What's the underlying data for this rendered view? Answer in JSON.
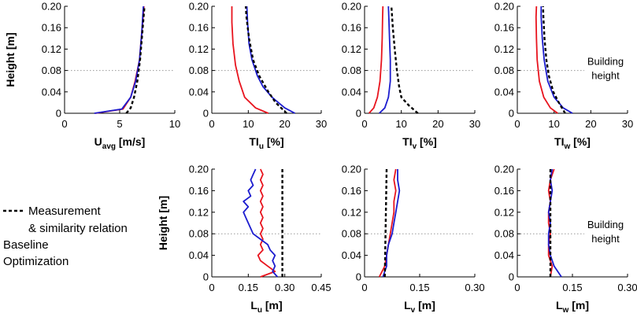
{
  "figure": {
    "building_annotation": [
      "Building",
      "height"
    ],
    "building_height": 0.08
  },
  "colors": {
    "measurement": "#000000",
    "baseline": "#e8141e",
    "optimization": "#1c1ccf",
    "building_line": "#999999"
  },
  "legend": {
    "items": [
      {
        "key": "measurement",
        "label": [
          "Measurement",
          "& similarity relation"
        ],
        "style": "dashed"
      },
      {
        "key": "baseline",
        "label": [
          "Baseline"
        ],
        "style": "solid"
      },
      {
        "key": "optimization",
        "label": [
          "Optimization"
        ],
        "style": "solid"
      }
    ]
  },
  "chart_data": [
    {
      "id": "u-avg",
      "type": "line",
      "ylabel": "Height [m]",
      "xlabel": {
        "main": "U",
        "sub": "avg",
        "unit": " [m/s]"
      },
      "xlim": [
        0,
        10
      ],
      "xticks": [
        0,
        5,
        10
      ],
      "ylim": [
        0,
        0.2
      ],
      "yticks": [
        0,
        0.04,
        0.08,
        0.12,
        0.16,
        0.2
      ],
      "series": [
        {
          "name": "Measurement & similarity relation",
          "dashed": true,
          "x": [
            5.6,
            6.0,
            6.3,
            6.6,
            6.85,
            7.05,
            7.25
          ],
          "y": [
            0.0,
            0.01,
            0.03,
            0.06,
            0.1,
            0.15,
            0.2
          ]
        },
        {
          "name": "Baseline",
          "x": [
            2.8,
            5.3,
            6.0,
            6.4,
            6.8,
            7.0,
            7.2
          ],
          "y": [
            0.0,
            0.008,
            0.03,
            0.06,
            0.1,
            0.15,
            0.2
          ]
        },
        {
          "name": "Optimization",
          "x": [
            2.7,
            5.2,
            6.0,
            6.45,
            6.8,
            7.0,
            7.15
          ],
          "y": [
            0.0,
            0.008,
            0.03,
            0.06,
            0.1,
            0.15,
            0.2
          ]
        }
      ]
    },
    {
      "id": "ti-u",
      "type": "line",
      "xlabel": {
        "main": "TI",
        "sub": "u",
        "unit": " [%]"
      },
      "xlim": [
        0,
        30
      ],
      "xticks": [
        0,
        10,
        20,
        30
      ],
      "ylim": [
        0,
        0.2
      ],
      "yticks": [
        0,
        0.04,
        0.08,
        0.12,
        0.16,
        0.2
      ],
      "series": [
        {
          "name": "Measurement & similarity relation",
          "dashed": true,
          "x": [
            20.5,
            17.5,
            15.5,
            13.0,
            11.3,
            10.2,
            9.5,
            9.3
          ],
          "y": [
            0.0,
            0.02,
            0.04,
            0.07,
            0.1,
            0.14,
            0.18,
            0.2
          ]
        },
        {
          "name": "Baseline",
          "x": [
            15.5,
            12.0,
            9.0,
            7.5,
            6.5,
            5.8,
            5.5,
            5.5
          ],
          "y": [
            0.0,
            0.01,
            0.03,
            0.06,
            0.09,
            0.13,
            0.17,
            0.2
          ]
        },
        {
          "name": "Optimization",
          "x": [
            22.8,
            20.0,
            16.5,
            14.0,
            12.5,
            11.0,
            10.2,
            9.8,
            9.6
          ],
          "y": [
            0.0,
            0.01,
            0.03,
            0.05,
            0.07,
            0.1,
            0.13,
            0.17,
            0.2
          ]
        }
      ]
    },
    {
      "id": "ti-v",
      "type": "line",
      "xlabel": {
        "main": "TI",
        "sub": "v",
        "unit": " [%]"
      },
      "xlim": [
        0,
        30
      ],
      "xticks": [
        0,
        10,
        20,
        30
      ],
      "ylim": [
        0,
        0.2
      ],
      "yticks": [
        0,
        0.04,
        0.08,
        0.12,
        0.16,
        0.2
      ],
      "series": [
        {
          "name": "Measurement & similarity relation",
          "dashed": true,
          "x": [
            14.5,
            12.0,
            10.0,
            9.4,
            8.8,
            8.2,
            7.7,
            7.3
          ],
          "y": [
            0.0,
            0.015,
            0.03,
            0.05,
            0.08,
            0.12,
            0.16,
            0.2
          ]
        },
        {
          "name": "Baseline",
          "x": [
            1.2,
            2.5,
            3.5,
            4.2,
            4.6,
            4.8,
            4.9,
            5.0
          ],
          "y": [
            0.0,
            0.01,
            0.03,
            0.06,
            0.1,
            0.14,
            0.18,
            0.2
          ]
        },
        {
          "name": "Optimization",
          "x": [
            4.0,
            5.5,
            6.5,
            7.0,
            7.0,
            6.8,
            6.6,
            6.5
          ],
          "y": [
            0.0,
            0.01,
            0.03,
            0.06,
            0.1,
            0.14,
            0.18,
            0.2
          ]
        }
      ]
    },
    {
      "id": "ti-w",
      "type": "line",
      "xlabel": {
        "main": "TI",
        "sub": "w",
        "unit": " [%]"
      },
      "xlim": [
        0,
        30
      ],
      "xticks": [
        0,
        10,
        20,
        30
      ],
      "ylim": [
        0,
        0.2
      ],
      "yticks": [
        0,
        0.04,
        0.08,
        0.12,
        0.16,
        0.2
      ],
      "series": [
        {
          "name": "Measurement & similarity relation",
          "dashed": true,
          "x": [
            13.0,
            11.3,
            9.8,
            8.6,
            7.9,
            7.4,
            7.1,
            7.0
          ],
          "y": [
            0.0,
            0.02,
            0.04,
            0.07,
            0.1,
            0.14,
            0.18,
            0.2
          ]
        },
        {
          "name": "Baseline",
          "x": [
            11.0,
            9.0,
            7.2,
            6.0,
            5.4,
            5.2,
            5.1,
            5.2
          ],
          "y": [
            0.0,
            0.01,
            0.03,
            0.06,
            0.1,
            0.14,
            0.18,
            0.2
          ]
        },
        {
          "name": "Optimization",
          "x": [
            15.0,
            12.5,
            10.0,
            8.3,
            7.3,
            6.8,
            6.5,
            6.5
          ],
          "y": [
            0.0,
            0.01,
            0.03,
            0.06,
            0.1,
            0.14,
            0.18,
            0.2
          ]
        }
      ]
    },
    {
      "id": "l-u",
      "type": "line",
      "ylabel": "Height [m]",
      "xlabel": {
        "main": "L",
        "sub": "u",
        "unit": " [m]"
      },
      "xlim": [
        0,
        0.45
      ],
      "xticks": [
        0,
        0.15,
        0.3,
        0.45
      ],
      "ylim": [
        0,
        0.2
      ],
      "yticks": [
        0,
        0.04,
        0.08,
        0.12,
        0.16,
        0.2
      ],
      "series": [
        {
          "name": "Measurement & similarity relation",
          "dashed": true,
          "x": [
            0.29,
            0.29
          ],
          "y": [
            0.0,
            0.2
          ]
        },
        {
          "name": "Baseline",
          "x": [
            0.2,
            0.26,
            0.23,
            0.2,
            0.19,
            0.21,
            0.2,
            0.21,
            0.2,
            0.21,
            0.2,
            0.21,
            0.2,
            0.21,
            0.2,
            0.21,
            0.2,
            0.21,
            0.2,
            0.21,
            0.2
          ],
          "y": [
            0.0,
            0.01,
            0.02,
            0.03,
            0.04,
            0.05,
            0.06,
            0.07,
            0.08,
            0.09,
            0.1,
            0.11,
            0.12,
            0.13,
            0.14,
            0.15,
            0.16,
            0.17,
            0.18,
            0.19,
            0.2
          ]
        },
        {
          "name": "Optimization",
          "x": [
            0.27,
            0.25,
            0.26,
            0.25,
            0.26,
            0.24,
            0.23,
            0.2,
            0.17,
            0.16,
            0.15,
            0.14,
            0.13,
            0.15,
            0.13,
            0.16,
            0.15,
            0.17,
            0.16,
            0.17,
            0.18
          ],
          "y": [
            0.0,
            0.01,
            0.02,
            0.03,
            0.04,
            0.05,
            0.06,
            0.07,
            0.08,
            0.09,
            0.1,
            0.11,
            0.12,
            0.13,
            0.14,
            0.15,
            0.16,
            0.17,
            0.18,
            0.19,
            0.2
          ]
        }
      ]
    },
    {
      "id": "l-v",
      "type": "line",
      "xlabel": {
        "main": "L",
        "sub": "v",
        "unit": " [m]"
      },
      "xlim": [
        0,
        0.3
      ],
      "xticks": [
        0,
        0.15,
        0.3
      ],
      "ylim": [
        0,
        0.2
      ],
      "yticks": [
        0,
        0.04,
        0.08,
        0.12,
        0.16,
        0.2
      ],
      "series": [
        {
          "name": "Measurement & similarity relation",
          "dashed": true,
          "x": [
            0.055,
            0.06
          ],
          "y": [
            0.0,
            0.2
          ]
        },
        {
          "name": "Baseline",
          "x": [
            0.04,
            0.055,
            0.06,
            0.065,
            0.07,
            0.075,
            0.08,
            0.08,
            0.085,
            0.08,
            0.085
          ],
          "y": [
            0.0,
            0.02,
            0.04,
            0.06,
            0.08,
            0.1,
            0.12,
            0.14,
            0.16,
            0.18,
            0.2
          ]
        },
        {
          "name": "Optimization",
          "x": [
            0.05,
            0.06,
            0.06,
            0.065,
            0.075,
            0.08,
            0.085,
            0.09,
            0.095,
            0.09,
            0.09
          ],
          "y": [
            0.0,
            0.02,
            0.04,
            0.06,
            0.08,
            0.1,
            0.12,
            0.14,
            0.16,
            0.18,
            0.2
          ]
        }
      ]
    },
    {
      "id": "l-w",
      "type": "line",
      "xlabel": {
        "main": "L",
        "sub": "w",
        "unit": " [m]"
      },
      "xlim": [
        0,
        0.3
      ],
      "xticks": [
        0,
        0.15,
        0.3
      ],
      "ylim": [
        0,
        0.2
      ],
      "yticks": [
        0,
        0.04,
        0.08,
        0.12,
        0.16,
        0.2
      ],
      "series": [
        {
          "name": "Measurement & similarity relation",
          "dashed": true,
          "x": [
            0.09,
            0.09
          ],
          "y": [
            0.0,
            0.2
          ]
        },
        {
          "name": "Baseline",
          "x": [
            0.09,
            0.095,
            0.085,
            0.085,
            0.09,
            0.085,
            0.085,
            0.09,
            0.085,
            0.09,
            0.1
          ],
          "y": [
            0.0,
            0.02,
            0.04,
            0.06,
            0.08,
            0.1,
            0.12,
            0.14,
            0.16,
            0.18,
            0.2
          ]
        },
        {
          "name": "Optimization",
          "x": [
            0.12,
            0.1,
            0.09,
            0.085,
            0.085,
            0.09,
            0.085,
            0.09,
            0.095,
            0.09,
            0.095
          ],
          "y": [
            0.0,
            0.02,
            0.04,
            0.06,
            0.08,
            0.1,
            0.12,
            0.14,
            0.16,
            0.18,
            0.2
          ]
        }
      ]
    }
  ]
}
